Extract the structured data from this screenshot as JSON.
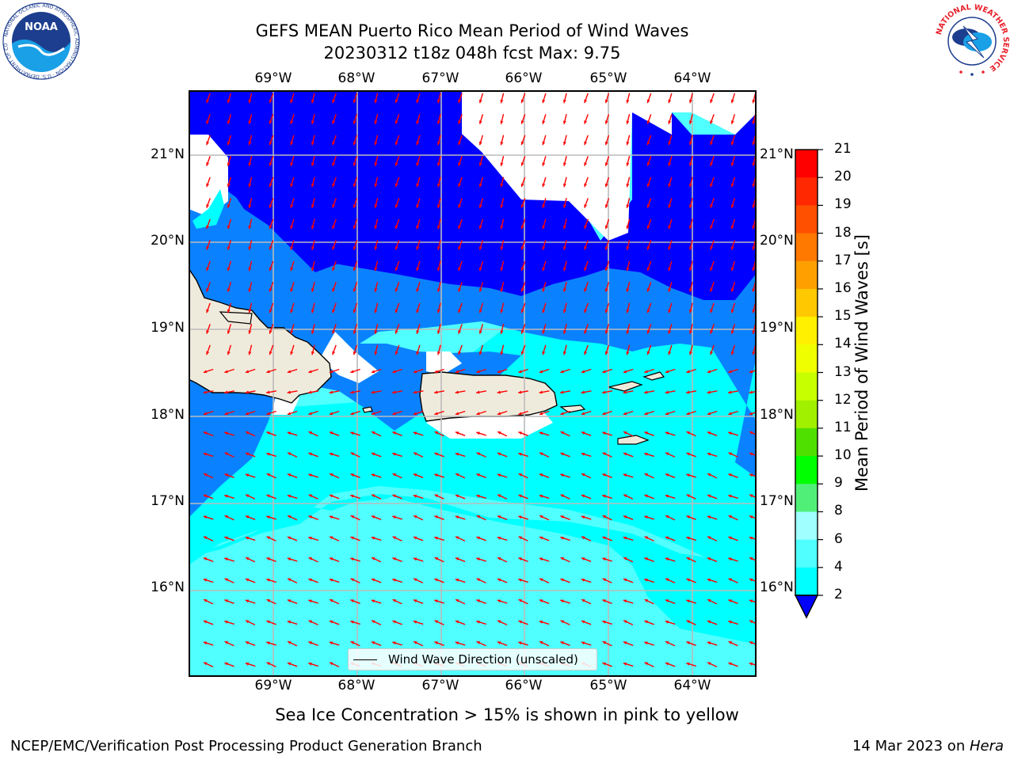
{
  "header": {
    "title_line1": "GEFS MEAN Puerto Rico Mean Period of Wind Waves",
    "title_line2": "20230312 t18z 048h fcst   Max: 9.75"
  },
  "map": {
    "lon_ticks": [
      "69°W",
      "68°W",
      "67°W",
      "66°W",
      "65°W",
      "64°W"
    ],
    "lat_ticks": [
      "21°N",
      "20°N",
      "19°N",
      "18°N",
      "17°N",
      "16°N"
    ],
    "land_color": "#efebdc",
    "arrow_color": "#ff0000",
    "gridline_color": "#bbbbbb"
  },
  "legend": {
    "label": "Wind Wave Direction (unscaled)"
  },
  "colorbar": {
    "label": "Mean Period of Wind Waves [s]",
    "ticks": [
      "21",
      "20",
      "19",
      "18",
      "17",
      "16",
      "15",
      "14",
      "13",
      "12",
      "11",
      "10",
      "9",
      "8",
      "6",
      "4",
      "2"
    ],
    "colors": [
      "#ff0000",
      "#ff2800",
      "#ff5000",
      "#ff7800",
      "#ffa000",
      "#ffc800",
      "#fff000",
      "#f0ff00",
      "#c8ff00",
      "#a0f000",
      "#50e000",
      "#00ff00",
      "#50f078",
      "#a0ffff",
      "#50ffff",
      "#00ffff",
      "#0a82ff"
    ],
    "extend_color": "#0000ff"
  },
  "subtitle": "Sea Ice Concentration > 15% is shown in pink to yellow",
  "footer": {
    "left": "NCEP/EMC/Verification Post Processing Product Generation Branch",
    "right_prefix": "14 Mar 2023 on ",
    "right_italic": "Hera"
  },
  "logos": {
    "noaa_text": "NOAA",
    "noaa_ring": "NATIONAL OCEANIC AND ATMOSPHERIC ADMINISTRATION · U.S. DEPARTMENT OF COMMERCE",
    "nws_ring": "NATIONAL WEATHER SERVICE"
  }
}
